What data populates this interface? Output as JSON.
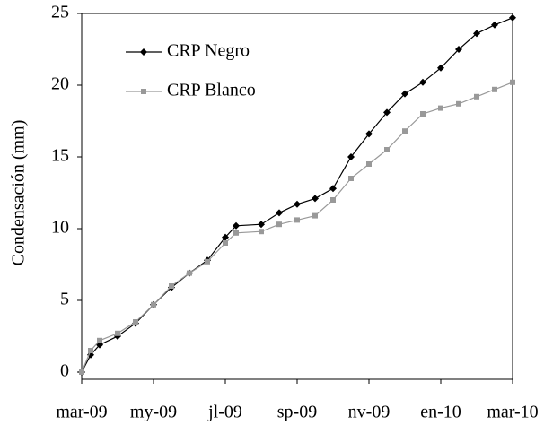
{
  "chart_data": {
    "type": "line",
    "y_label": "Condensación (mm)",
    "x": [
      0,
      0.25,
      0.5,
      1,
      1.5,
      2,
      2.5,
      3,
      3.5,
      4,
      4.3,
      5,
      5.5,
      6,
      6.5,
      7,
      7.5,
      8,
      8.5,
      9,
      9.5,
      10,
      10.5,
      11,
      11.5,
      12
    ],
    "series": [
      {
        "name": "CRP Negro",
        "color": "#000000",
        "marker": "diamond",
        "values": [
          0,
          1.2,
          1.9,
          2.5,
          3.4,
          4.7,
          5.9,
          6.9,
          7.8,
          9.4,
          10.2,
          10.3,
          11.1,
          11.7,
          12.1,
          12.8,
          15,
          16.6,
          18.1,
          19.4,
          20.2,
          21.2,
          22.5,
          23.6,
          24.2,
          24.7
        ]
      },
      {
        "name": "CRP Blanco",
        "color": "#999999",
        "marker": "square",
        "values": [
          0,
          1.5,
          2.2,
          2.7,
          3.5,
          4.7,
          6.0,
          6.9,
          7.7,
          9.0,
          9.7,
          9.8,
          10.3,
          10.6,
          10.9,
          12,
          13.5,
          14.5,
          15.5,
          16.8,
          18.0,
          18.4,
          18.7,
          19.2,
          19.7,
          20.2
        ]
      }
    ],
    "xlim": [
      0,
      12
    ],
    "xticks": [
      {
        "value": 0,
        "label": "mar-09"
      },
      {
        "value": 2,
        "label": "my-09"
      },
      {
        "value": 4,
        "label": "jl-09"
      },
      {
        "value": 6,
        "label": "sp-09"
      },
      {
        "value": 8,
        "label": "nv-09"
      },
      {
        "value": 10,
        "label": "en-10"
      },
      {
        "value": 12,
        "label": "mar-10"
      }
    ],
    "ylim": [
      -0.5,
      25
    ],
    "yticks": [
      0,
      5,
      10,
      15,
      20,
      25
    ],
    "legend": "upper-left"
  }
}
